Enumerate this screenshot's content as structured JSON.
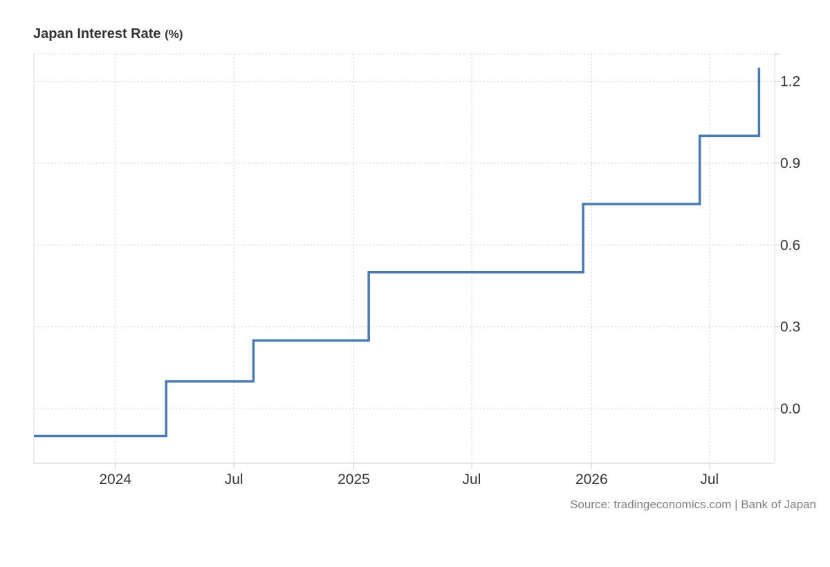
{
  "chart_data": {
    "type": "line",
    "step": true,
    "title": "Japan Interest Rate",
    "unit": "(%)",
    "xlabel": "",
    "ylabel": "",
    "x_ticks": [
      {
        "date": "2024-01-01",
        "label": "2024"
      },
      {
        "date": "2024-07-01",
        "label": "Jul"
      },
      {
        "date": "2025-01-01",
        "label": "2025"
      },
      {
        "date": "2025-07-01",
        "label": "Jul"
      },
      {
        "date": "2026-01-01",
        "label": "2026"
      },
      {
        "date": "2026-07-01",
        "label": "Jul"
      }
    ],
    "y_ticks": [
      0.0,
      0.3,
      0.6,
      0.9,
      1.2
    ],
    "y_tick_labels": [
      "0.0",
      "0.3",
      "0.6",
      "0.9",
      "1.2"
    ],
    "xlim": [
      "2023-08-29",
      "2026-10-09"
    ],
    "ylim": [
      -0.2,
      1.3
    ],
    "grid": true,
    "y_axis_position": "right",
    "series": [
      {
        "color": "#4a7ab2",
        "points": [
          {
            "x": "2023-08-29",
            "y": -0.1
          },
          {
            "x": "2024-03-19",
            "y": 0.1
          },
          {
            "x": "2024-07-31",
            "y": 0.25
          },
          {
            "x": "2025-01-24",
            "y": 0.5
          },
          {
            "x": "2025-12-19",
            "y": 0.75
          },
          {
            "x": "2026-06-16",
            "y": 1.0
          },
          {
            "x": "2026-09-15",
            "y": 1.25
          }
        ]
      }
    ]
  },
  "source": "Source: tradingeconomics.com | Bank of Japan"
}
